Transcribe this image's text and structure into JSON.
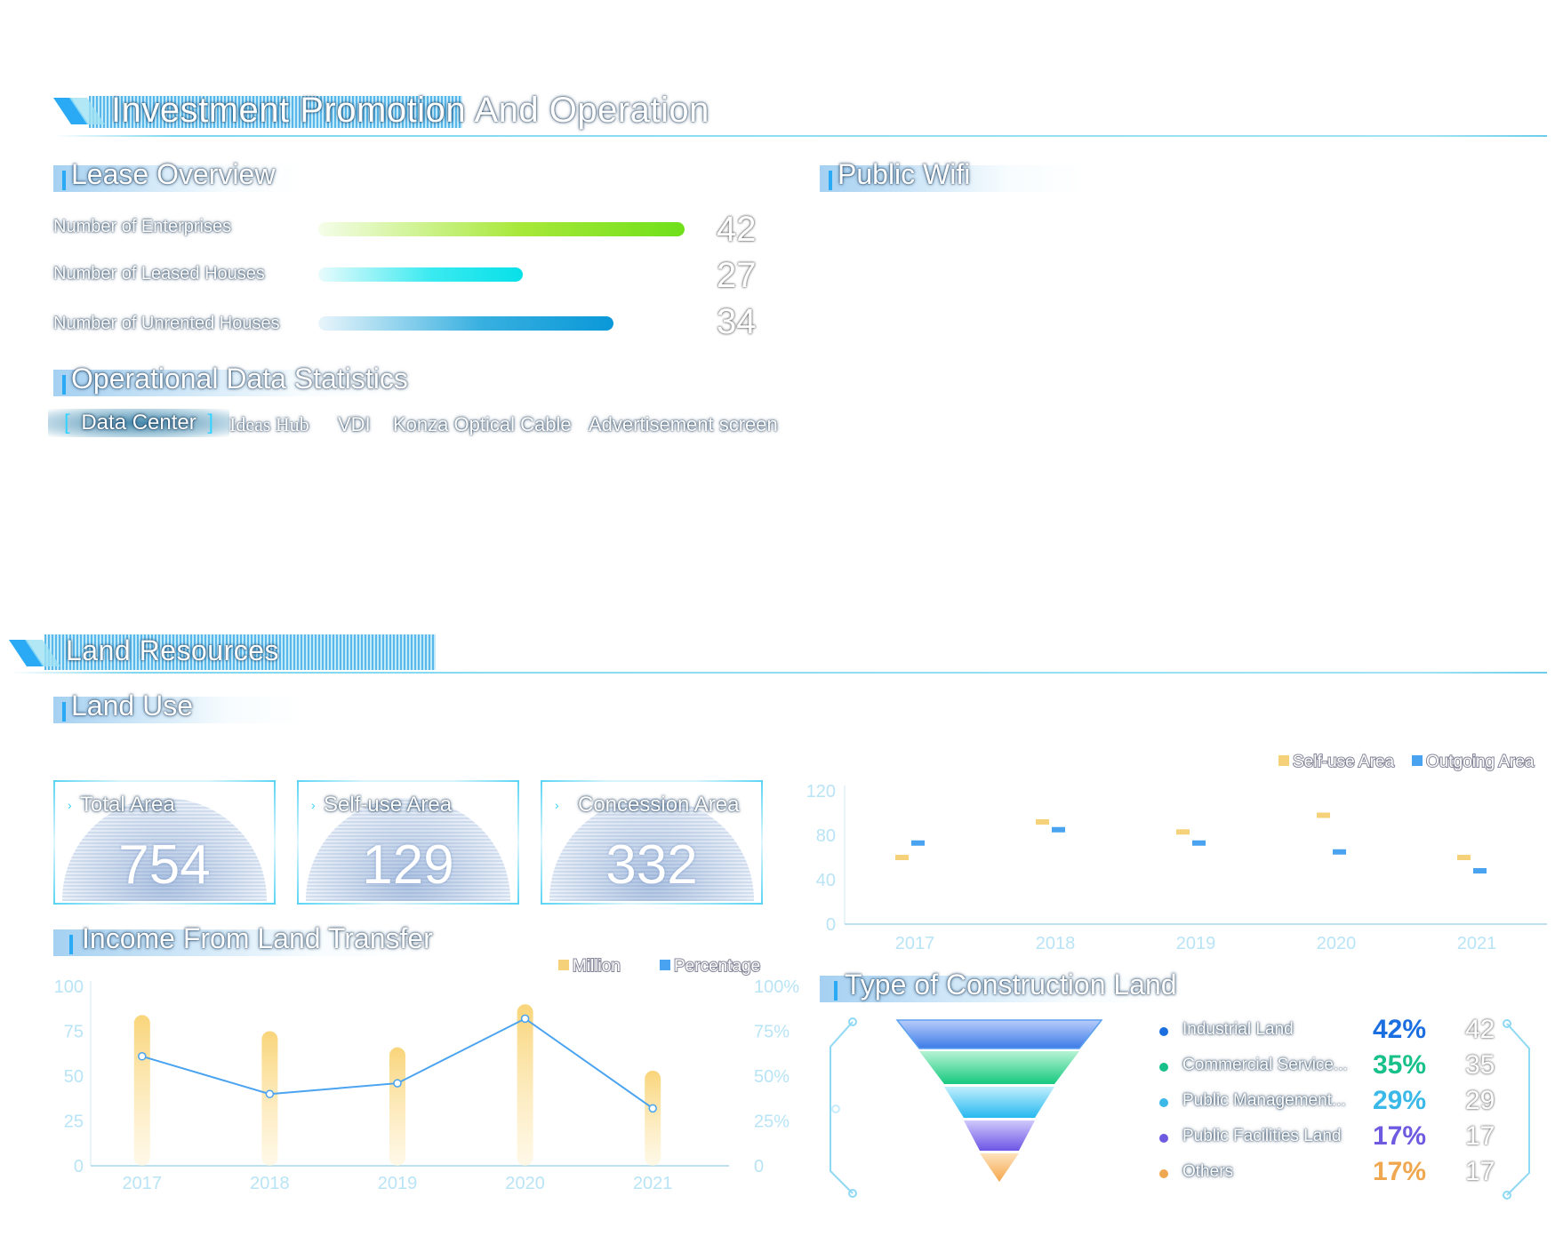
{
  "section1": {
    "title": "Investment Promotion And Operation"
  },
  "lease": {
    "title": "Lease Overview",
    "rows": [
      {
        "label": "Number of Enterprises",
        "value": "42",
        "fill": 1.0
      },
      {
        "label": "Number of Leased Houses",
        "value": "27",
        "fill": 0.55
      },
      {
        "label": "Number of Unrented Houses",
        "value": "34",
        "fill": 0.8
      }
    ]
  },
  "wifi": {
    "title": "Public Wifi"
  },
  "ops": {
    "title": "Operational Data Statistics",
    "tabs": [
      "Data Center",
      "Ideas Hub",
      "VDI",
      "Konza Optical Cable",
      "Advertisement screen"
    ],
    "active_tab": "Data Center",
    "bracket_left": "[",
    "bracket_right": "]"
  },
  "section2": {
    "title": "Land Resources"
  },
  "land_use": {
    "title": "Land Use",
    "cards": [
      {
        "label": "Total Area",
        "value": "754"
      },
      {
        "label": "Self-use Area",
        "value": "129"
      },
      {
        "label": "Concession Area",
        "value": "332"
      }
    ]
  },
  "income": {
    "title": "Income From Land Transfer"
  },
  "construction": {
    "title": "Type of Construction Land",
    "items": [
      {
        "name": "Industrial Land",
        "pct": "42%",
        "value": "42",
        "color": "#1a6ee0"
      },
      {
        "name": "Commercial Service...",
        "pct": "35%",
        "value": "35",
        "color": "#18c08a"
      },
      {
        "name": "Public Management...",
        "pct": "29%",
        "value": "29",
        "color": "#3ab8e8"
      },
      {
        "name": "Public Facilities Land",
        "pct": "17%",
        "value": "17",
        "color": "#6d5ae0"
      },
      {
        "name": "Others",
        "pct": "17%",
        "value": "17",
        "color": "#f0a850"
      }
    ]
  },
  "chart_data": [
    {
      "type": "bar",
      "categories": [
        "2017",
        "2018",
        "2019",
        "2020",
        "2021"
      ],
      "series": [
        {
          "name": "Self-use Area",
          "values": [
            60,
            92,
            83,
            98,
            60
          ],
          "color": "#f5d27a"
        },
        {
          "name": "Outgoing Area",
          "values": [
            73,
            85,
            73,
            65,
            48
          ],
          "color": "#4aa3f0"
        }
      ],
      "ylim": [
        0,
        120
      ],
      "yticks": [
        "0",
        "40",
        "80",
        "120"
      ],
      "legend": "top-right"
    },
    {
      "type": "bar",
      "categories": [
        "2017",
        "2018",
        "2019",
        "2020",
        "2021"
      ],
      "series": [
        {
          "name": "Million",
          "type": "bar",
          "values": [
            84,
            75,
            66,
            90,
            53
          ],
          "color": "#f5d27a"
        },
        {
          "name": "Percentage",
          "type": "line",
          "values": [
            61,
            40,
            46,
            82,
            32
          ],
          "color": "#4aa3f0"
        }
      ],
      "ylim": [
        0,
        100
      ],
      "yticks_left": [
        "0",
        "25",
        "50",
        "75",
        "100"
      ],
      "yticks_right": [
        "0",
        "25%",
        "50%",
        "75%",
        "100%"
      ],
      "legend": "top-right"
    }
  ]
}
